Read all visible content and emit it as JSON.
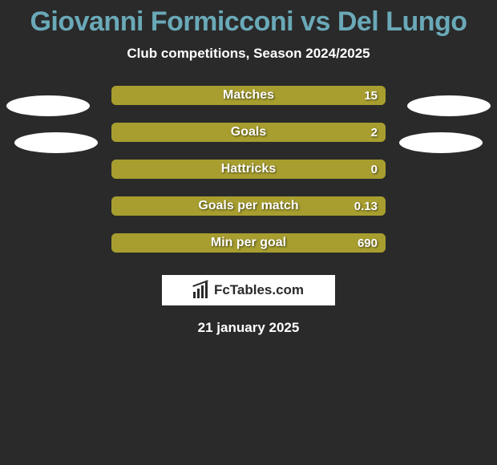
{
  "title": "Giovanni Formicconi vs Del Lungo",
  "subtitle": "Club competitions, Season 2024/2025",
  "date": "21 january 2025",
  "brand": "FcTables.com",
  "colors": {
    "bar_fill": "#a79e2f",
    "bar_bg": "#8c8525",
    "title_color": "#6aa9b8",
    "background": "#2a2a2a"
  },
  "stats": [
    {
      "label": "Matches",
      "value": "15",
      "fill_pct": 100
    },
    {
      "label": "Goals",
      "value": "2",
      "fill_pct": 100
    },
    {
      "label": "Hattricks",
      "value": "0",
      "fill_pct": 100
    },
    {
      "label": "Goals per match",
      "value": "0.13",
      "fill_pct": 100
    },
    {
      "label": "Min per goal",
      "value": "690",
      "fill_pct": 100
    }
  ]
}
